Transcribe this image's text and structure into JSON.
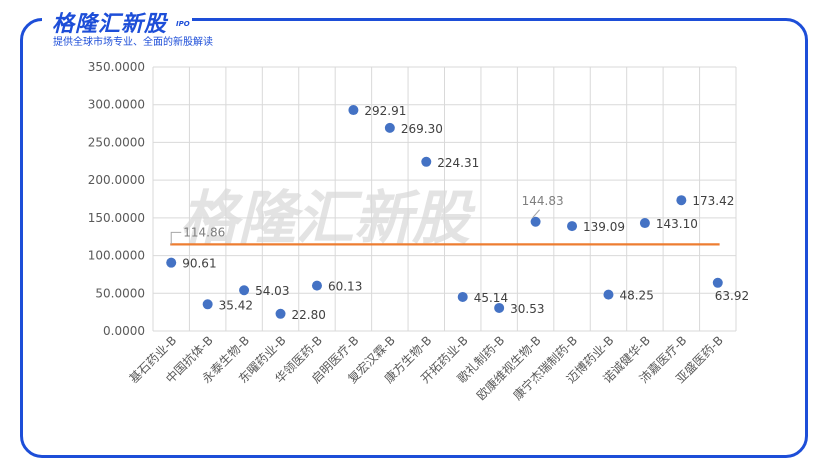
{
  "brand": {
    "name": "格隆汇新股",
    "ipo": "IPO",
    "tagline": "提供全球市场专业、全面的新股解读"
  },
  "watermark": "格隆汇新股",
  "colors": {
    "frame": "#1d4ed8",
    "point": "#4472c4",
    "average_line": "#ed7d31",
    "grid": "#d9d9d9"
  },
  "chart_data": {
    "type": "scatter",
    "categories": [
      "基石药业-B",
      "中国抗体-B",
      "永泰生物-B",
      "东曜药业-B",
      "华领医药-B",
      "启明医疗-B",
      "复宏汉霖-B",
      "康方生物-B",
      "开拓药业-B",
      "歌礼制药-B",
      "欧康维视生物-B",
      "康宁杰瑞制药-B",
      "迈博药业-B",
      "诺诚健华-B",
      "沛嘉医疗-B",
      "亚盛医药-B"
    ],
    "values": [
      90.61,
      35.42,
      54.03,
      22.8,
      60.13,
      292.91,
      269.3,
      224.31,
      45.14,
      30.53,
      144.83,
      139.09,
      48.25,
      143.1,
      173.42,
      63.92
    ],
    "value_labels": [
      "90.61",
      "35.42",
      "54.03",
      "22.80",
      "60.13",
      "292.91",
      "269.30",
      "224.31",
      "45.14",
      "30.53",
      "144.83",
      "139.09",
      "48.25",
      "143.10",
      "173.42",
      "63.92"
    ],
    "average": {
      "value": 114.86,
      "label": "114.86"
    },
    "yticks": [
      "0.0000",
      "50.0000",
      "100.0000",
      "150.0000",
      "200.0000",
      "250.0000",
      "300.0000",
      "350.0000"
    ],
    "ylim": [
      0,
      350
    ],
    "grid": true
  }
}
